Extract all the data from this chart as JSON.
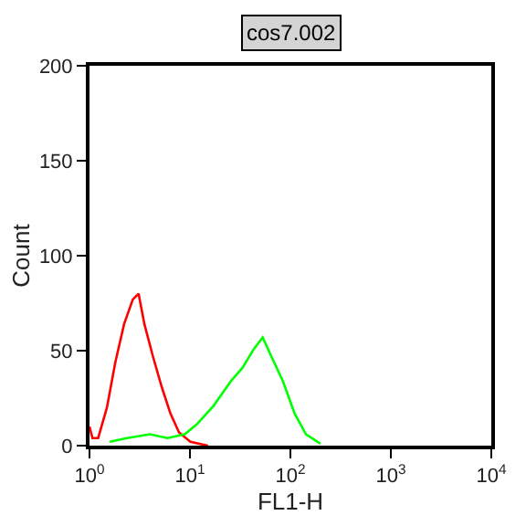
{
  "chart_data": {
    "type": "line",
    "title": "cos7.002",
    "xlabel": "FL1-H",
    "ylabel": "Count",
    "log": "x",
    "marker": "none",
    "xlim": [
      1,
      10000
    ],
    "xticks": [
      {
        "value": 1,
        "label": "10$^{0}$"
      },
      {
        "value": 10,
        "label": "10$^{1}$"
      },
      {
        "value": 100,
        "label": "10$^{2}$"
      },
      {
        "value": 1000,
        "label": "10$^{3}$"
      },
      {
        "value": 10000,
        "label": "10$^{4}$"
      }
    ],
    "ylim": [
      0,
      200
    ],
    "yticks": [
      0,
      50,
      100,
      150,
      200
    ],
    "series": [
      {
        "color": "#ff0000",
        "x": [
          1,
          1.07,
          1.22,
          1.49,
          1.81,
          2.21,
          2.7,
          3.08,
          3.52,
          4.28,
          5.23,
          6.38,
          7.78,
          10.1,
          15.1
        ],
        "values": [
          10,
          4,
          4,
          20,
          44,
          64,
          77,
          80,
          64,
          47,
          31,
          17,
          7,
          2,
          0
        ]
      },
      {
        "color": "#00ff00",
        "x": [
          1.59,
          2.36,
          4.0,
          5.97,
          8.88,
          11.6,
          17.2,
          25.6,
          33.4,
          43.4,
          53.0,
          64.6,
          84.2,
          110,
          143,
          199
        ],
        "values": [
          2,
          4,
          6,
          4,
          6,
          11,
          21,
          34,
          41,
          51,
          57,
          47,
          34,
          17,
          6,
          1
        ]
      }
    ]
  }
}
